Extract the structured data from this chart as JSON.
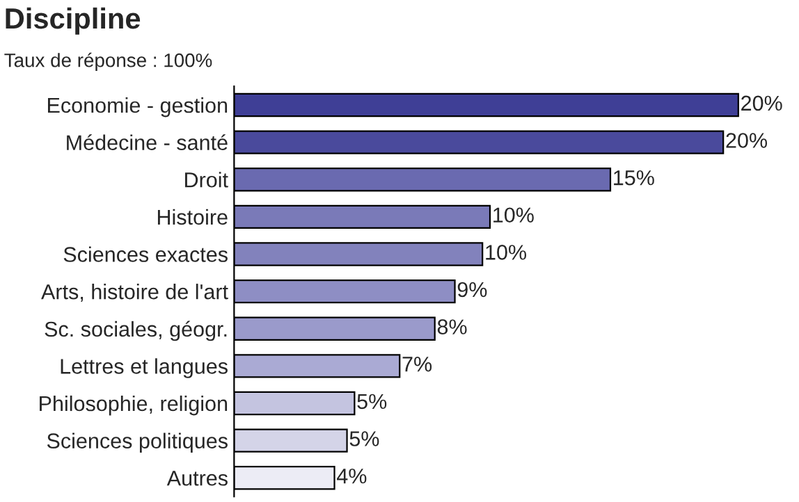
{
  "chart_data": {
    "type": "bar",
    "orientation": "horizontal",
    "title": "Discipline",
    "subtitle": "Taux de réponse : 100%",
    "categories": [
      "Economie - gestion",
      "Médecine - santé",
      "Droit",
      "Histoire",
      "Sciences exactes",
      "Arts, histoire de l'art",
      "Sc. sociales, géogr.",
      "Lettres et langues",
      "Philosophie, religion",
      "Sciences politiques",
      "Autres"
    ],
    "values": [
      20.1,
      19.5,
      15,
      10.2,
      9.9,
      8.8,
      8,
      6.6,
      4.8,
      4.5,
      4
    ],
    "value_labels": [
      "20%",
      "20%",
      "15%",
      "10%",
      "10%",
      "9%",
      "8%",
      "7%",
      "5%",
      "5%",
      "4%"
    ],
    "colors": [
      "#3f3f96",
      "#4a4a9c",
      "#6a6ab0",
      "#7a7ab8",
      "#8282bc",
      "#8e8ec4",
      "#9a9acb",
      "#aaaad4",
      "#c4c4e0",
      "#d4d4e8",
      "#ececf5"
    ],
    "tick_labels": "y",
    "grid": false,
    "legend": false
  }
}
